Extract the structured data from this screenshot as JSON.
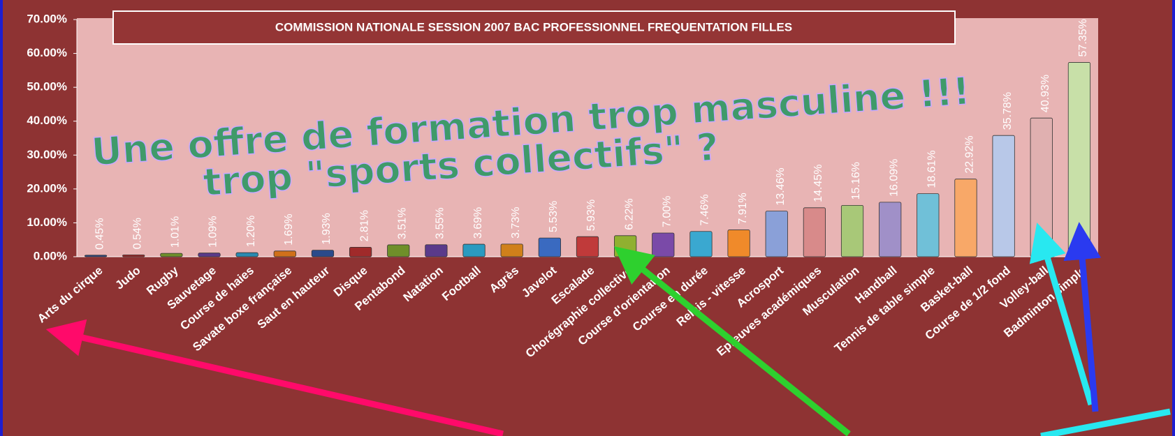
{
  "chart_data": {
    "type": "bar",
    "title": "COMMISSION NATIONALE SESSION 2007  BAC PROFESSIONNEL FREQUENTATION FILLES",
    "annotations": [
      "Une offre de formation trop masculine !!!",
      "trop \"sports collectifs\" ?"
    ],
    "categories": [
      "Arts du cirque",
      "Judo",
      "Rugby",
      "Sauvetage",
      "Course de haies",
      "Savate boxe française",
      "Saut en hauteur",
      "Disque",
      "Pentabond",
      "Natation",
      "Football",
      "Agrès",
      "Javelot",
      "Escalade",
      "Chorégraphie collective",
      "Course d'orientation",
      "Course en durée",
      "Relais - vitesse",
      "Acrosport",
      "Epreuves académiques",
      "Musculation",
      "Handball",
      "Tennis de table simple",
      "Basket-ball",
      "Course de 1/2 fond",
      "Volley-ball",
      "Badminton simple"
    ],
    "values": [
      0.45,
      0.54,
      1.01,
      1.09,
      1.2,
      1.69,
      1.93,
      2.81,
      3.51,
      3.55,
      3.69,
      3.73,
      5.53,
      5.93,
      6.22,
      7.0,
      7.46,
      7.91,
      13.46,
      14.45,
      15.16,
      16.09,
      18.61,
      22.92,
      35.78,
      40.93,
      57.35
    ],
    "value_labels": [
      "0.45%",
      "0.54%",
      "1.01%",
      "1.09%",
      "1.20%",
      "1.69%",
      "1.93%",
      "2.81%",
      "3.51%",
      "3.55%",
      "3.69%",
      "3.73%",
      "5.53%",
      "5.93%",
      "6.22%",
      "7.00%",
      "7.46%",
      "7.91%",
      "13.46%",
      "14.45%",
      "15.16%",
      "16.09%",
      "18.61%",
      "22.92%",
      "35.78%",
      "40.93%",
      "57.35%"
    ],
    "colors": [
      "#2b4a8a",
      "#a02a2a",
      "#6f8f2a",
      "#5a3a8a",
      "#2a8ab0",
      "#d0701a",
      "#2b4a8a",
      "#a02a2a",
      "#6f8f2a",
      "#5a3a8a",
      "#2a9ac0",
      "#d0801a",
      "#3a6ac0",
      "#c03a3a",
      "#90b030",
      "#7a4aa8",
      "#3aa8d0",
      "#f08a2a",
      "#8aa0d8",
      "#d88a8a",
      "#a8c878",
      "#a090c8",
      "#70c0d8",
      "#f8a868",
      "#b8c8e8",
      "#e0b0b0",
      "#c8e0a8"
    ],
    "ylim": [
      0,
      70
    ],
    "yticks": [
      {
        "value": 0,
        "label": "0.00%"
      },
      {
        "value": 10,
        "label": "10.00%"
      },
      {
        "value": 20,
        "label": "20.00%"
      },
      {
        "value": 30,
        "label": "30.00%"
      },
      {
        "value": 40,
        "label": "40.00%"
      },
      {
        "value": 50,
        "label": "50.00%"
      },
      {
        "value": 60,
        "label": "60.00%"
      },
      {
        "value": 70,
        "label": "70.00%"
      }
    ]
  }
}
